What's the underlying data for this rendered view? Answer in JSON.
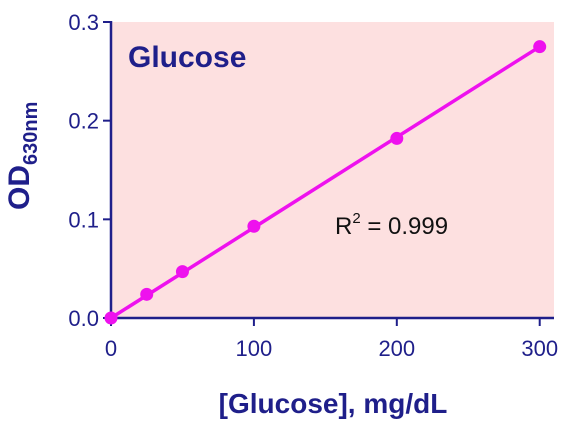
{
  "chart_data": {
    "type": "line",
    "title": "Glucose",
    "xlabel": "[Glucose], mg/dL",
    "ylabel": {
      "main": "OD",
      "subscript": "630nm"
    },
    "x": [
      0,
      25,
      50,
      100,
      200,
      300
    ],
    "series": [
      {
        "values": [
          0.0,
          0.024,
          0.047,
          0.093,
          0.182,
          0.275
        ]
      }
    ],
    "fit_line": {
      "from": [
        0,
        0.0
      ],
      "to": [
        300,
        0.275
      ]
    },
    "xlim": [
      0,
      310
    ],
    "ylim": [
      0,
      0.3
    ],
    "xticks": [
      "0",
      "100",
      "200",
      "300"
    ],
    "yticks": [
      "0.0",
      "0.1",
      "0.2",
      "0.3"
    ],
    "annotation": {
      "base": "R",
      "superscript": "2",
      "rest": " = 0.999"
    },
    "grid": false,
    "colors": {
      "plot_background": "#fde0e0",
      "series": "#ee11ee",
      "axes": "#1f1f8a",
      "text": "#1f1f8a"
    }
  }
}
